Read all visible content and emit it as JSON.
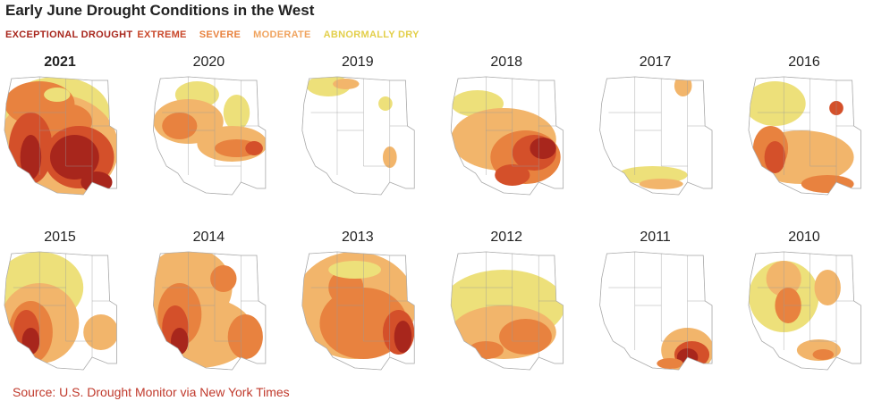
{
  "header": {
    "title": "Early June Drought Conditions in the West"
  },
  "legend": [
    {
      "label": "EXCEPTIONAL DROUGHT",
      "color": "#a8261c"
    },
    {
      "label": "EXTREME",
      "color": "#c9472a"
    },
    {
      "label": "SEVERE",
      "color": "#e8823f"
    },
    {
      "label": "MODERATE",
      "color": "#f0a35e"
    },
    {
      "label": "ABNORMALLY DRY",
      "color": "#e3cf4a"
    }
  ],
  "maps": [
    {
      "year": "2021"
    },
    {
      "year": "2020"
    },
    {
      "year": "2019"
    },
    {
      "year": "2018"
    },
    {
      "year": "2017"
    },
    {
      "year": "2016"
    },
    {
      "year": "2015"
    },
    {
      "year": "2014"
    },
    {
      "year": "2013"
    },
    {
      "year": "2012"
    },
    {
      "year": "2011"
    },
    {
      "year": "2010"
    }
  ],
  "footer": {
    "source": "Source: U.S. Drought Monitor via New York Times"
  }
}
